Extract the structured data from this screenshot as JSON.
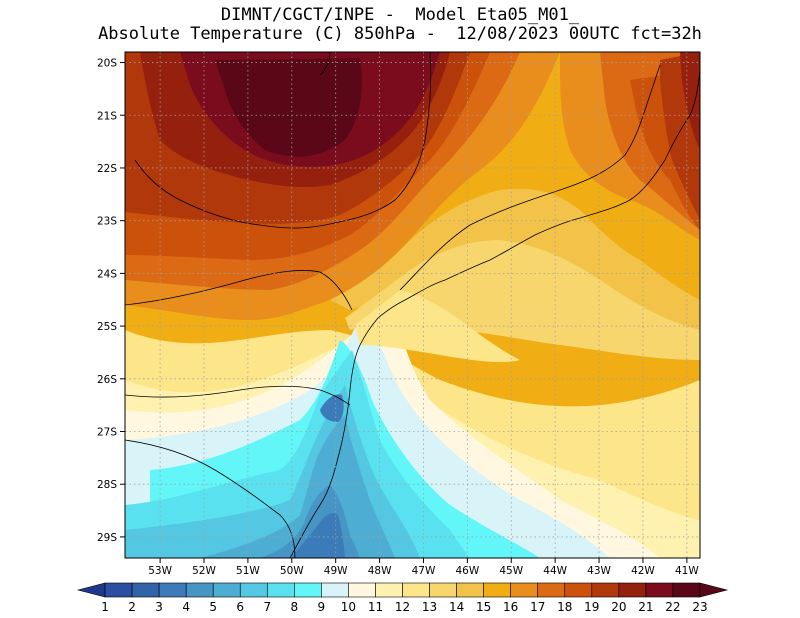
{
  "title": {
    "line1": "DIMNT/CGCT/INPE -  Model Eta05_M01_",
    "line2": "Absolute Temperature (C) 850hPa -  12/08/2023 00UTC fct=32h"
  },
  "map": {
    "lat_labels": [
      "20S",
      "21S",
      "22S",
      "23S",
      "24S",
      "25S",
      "26S",
      "27S",
      "28S",
      "29S"
    ],
    "lon_labels": [
      "53W",
      "52W",
      "51W",
      "50W",
      "49W",
      "48W",
      "47W",
      "46W",
      "45W",
      "44W",
      "43W",
      "42W",
      "41W"
    ],
    "lat_range": [
      -29.4,
      -19.8
    ],
    "lon_range": [
      -53.8,
      -40.7
    ],
    "grid": true,
    "field": "temperature_850hPa"
  },
  "colorbar": {
    "labels": [
      "1",
      "2",
      "3",
      "4",
      "5",
      "6",
      "7",
      "8",
      "9",
      "10",
      "11",
      "12",
      "13",
      "14",
      "15",
      "16",
      "17",
      "18",
      "19",
      "20",
      "21",
      "22",
      "23"
    ],
    "colors": [
      "#20388c",
      "#2b4ea3",
      "#3163a9",
      "#3b7bb9",
      "#4695c5",
      "#4eadd3",
      "#54c8e2",
      "#5ae1ef",
      "#62f6f8",
      "#d8f4f8",
      "#fff7e0",
      "#fff2b0",
      "#fde68a",
      "#f8d66e",
      "#f3c248",
      "#f0ad14",
      "#e98d1c",
      "#dc6a14",
      "#cc520c",
      "#b0380a",
      "#96200e",
      "#7a0c1e",
      "#5a0818"
    ]
  }
}
